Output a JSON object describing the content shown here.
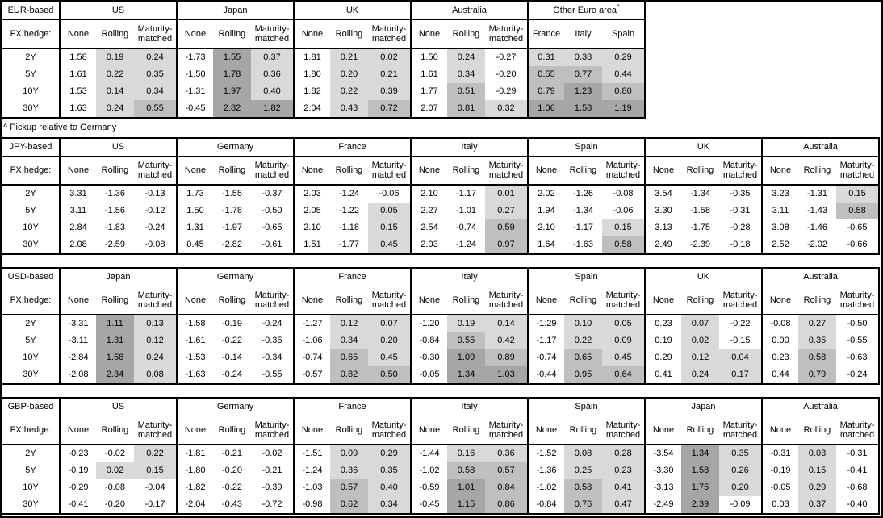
{
  "page": {
    "footnote": "^ Pickup relative to Germany"
  },
  "shared": {
    "row_header_label": "FX hedge:",
    "maturities": [
      "2Y",
      "5Y",
      "10Y",
      "30Y"
    ],
    "subcolumns": [
      "None",
      "Rolling",
      "Maturity-matched"
    ]
  },
  "colors": {
    "shade_negative": "#ffffff",
    "shade_0_to_0p5": "#d9d9d9",
    "shade_0p5_to_1": "#bfbfbf",
    "shade_1_plus": "#a6a6a6"
  },
  "tables": [
    {
      "base_label": "EUR-based",
      "full_width": false,
      "groups": [
        {
          "name": "US",
          "columns": [
            "None",
            "Rolling",
            "Maturity-matched"
          ],
          "shade_first_col": false,
          "rows": [
            [
              "1.58",
              "0.19",
              "0.24"
            ],
            [
              "1.61",
              "0.22",
              "0.35"
            ],
            [
              "1.53",
              "0.14",
              "0.34"
            ],
            [
              "1.63",
              "0.24",
              "0.55"
            ]
          ]
        },
        {
          "name": "Japan",
          "columns": [
            "None",
            "Rolling",
            "Maturity-matched"
          ],
          "shade_first_col": false,
          "rows": [
            [
              "-1.73",
              "1.55",
              "0.37"
            ],
            [
              "-1.50",
              "1.78",
              "0.36"
            ],
            [
              "-1.31",
              "1.97",
              "0.40"
            ],
            [
              "-0.45",
              "2.82",
              "1.82"
            ]
          ]
        },
        {
          "name": "UK",
          "columns": [
            "None",
            "Rolling",
            "Maturity-matched"
          ],
          "shade_first_col": false,
          "rows": [
            [
              "1.81",
              "0.21",
              "0.02"
            ],
            [
              "1.80",
              "0.20",
              "0.21"
            ],
            [
              "1.82",
              "0.22",
              "0.39"
            ],
            [
              "2.04",
              "0.43",
              "0.72"
            ]
          ]
        },
        {
          "name": "Australia",
          "columns": [
            "None",
            "Rolling",
            "Maturity-matched"
          ],
          "shade_first_col": false,
          "rows": [
            [
              "1.50",
              "0.24",
              "-0.27"
            ],
            [
              "1.61",
              "0.34",
              "-0.20"
            ],
            [
              "1.77",
              "0.51",
              "-0.29"
            ],
            [
              "2.07",
              "0.81",
              "0.32"
            ]
          ]
        },
        {
          "name": "Other Euro area",
          "sup": "^",
          "columns": [
            "France",
            "Italy",
            "Spain"
          ],
          "shade_first_col": true,
          "rows": [
            [
              "0.31",
              "0.38",
              "0.29"
            ],
            [
              "0.55",
              "0.77",
              "0.44"
            ],
            [
              "0.79",
              "1.23",
              "0.80"
            ],
            [
              "1.06",
              "1.58",
              "1.19"
            ]
          ]
        }
      ]
    },
    {
      "base_label": "JPY-based",
      "full_width": true,
      "groups": [
        {
          "name": "US",
          "columns": [
            "None",
            "Rolling",
            "Maturity-matched"
          ],
          "shade_first_col": false,
          "rows": [
            [
              "3.31",
              "-1.36",
              "-0.13"
            ],
            [
              "3.11",
              "-1.56",
              "-0.12"
            ],
            [
              "2.84",
              "-1.83",
              "-0.24"
            ],
            [
              "2.08",
              "-2.59",
              "-0.08"
            ]
          ]
        },
        {
          "name": "Germany",
          "columns": [
            "None",
            "Rolling",
            "Maturity-matched"
          ],
          "shade_first_col": false,
          "rows": [
            [
              "1.73",
              "-1.55",
              "-0.37"
            ],
            [
              "1.50",
              "-1.78",
              "-0.50"
            ],
            [
              "1.31",
              "-1.97",
              "-0.65"
            ],
            [
              "0.45",
              "-2.82",
              "-0.61"
            ]
          ]
        },
        {
          "name": "France",
          "columns": [
            "None",
            "Rolling",
            "Maturity-matched"
          ],
          "shade_first_col": false,
          "rows": [
            [
              "2.03",
              "-1.24",
              "-0.06"
            ],
            [
              "2.05",
              "-1.22",
              "0.05"
            ],
            [
              "2.10",
              "-1.18",
              "0.15"
            ],
            [
              "1.51",
              "-1.77",
              "0.45"
            ]
          ]
        },
        {
          "name": "Italy",
          "columns": [
            "None",
            "Rolling",
            "Maturity-matched"
          ],
          "shade_first_col": false,
          "rows": [
            [
              "2.10",
              "-1.17",
              "0.01"
            ],
            [
              "2.27",
              "-1.01",
              "0.27"
            ],
            [
              "2.54",
              "-0.74",
              "0.59"
            ],
            [
              "2.03",
              "-1.24",
              "0.97"
            ]
          ]
        },
        {
          "name": "Spain",
          "columns": [
            "None",
            "Rolling",
            "Maturity-matched"
          ],
          "shade_first_col": false,
          "rows": [
            [
              "2.02",
              "-1.26",
              "-0.08"
            ],
            [
              "1.94",
              "-1.34",
              "-0.06"
            ],
            [
              "2.10",
              "-1.17",
              "0.15"
            ],
            [
              "1.64",
              "-1.63",
              "0.58"
            ]
          ]
        },
        {
          "name": "UK",
          "columns": [
            "None",
            "Rolling",
            "Maturity-matched"
          ],
          "shade_first_col": false,
          "rows": [
            [
              "3.54",
              "-1.34",
              "-0.35"
            ],
            [
              "3.30",
              "-1.58",
              "-0.31"
            ],
            [
              "3.13",
              "-1.75",
              "-0.28"
            ],
            [
              "2.49",
              "-2.39",
              "-0.18"
            ]
          ]
        },
        {
          "name": "Australia",
          "columns": [
            "None",
            "Rolling",
            "Maturity-matched"
          ],
          "shade_first_col": false,
          "rows": [
            [
              "3.23",
              "-1.31",
              "0.15"
            ],
            [
              "3.11",
              "-1.43",
              "0.58"
            ],
            [
              "3.08",
              "-1.46",
              "-0.65"
            ],
            [
              "2.52",
              "-2.02",
              "-0.66"
            ]
          ]
        }
      ]
    },
    {
      "base_label": "USD-based",
      "full_width": true,
      "groups": [
        {
          "name": "Japan",
          "columns": [
            "None",
            "Rolling",
            "Maturity-matched"
          ],
          "shade_first_col": false,
          "rows": [
            [
              "-3.31",
              "1.11",
              "0.13"
            ],
            [
              "-3.11",
              "1.31",
              "0.12"
            ],
            [
              "-2.84",
              "1.58",
              "0.24"
            ],
            [
              "-2.08",
              "2.34",
              "0.08"
            ]
          ]
        },
        {
          "name": "Germany",
          "columns": [
            "None",
            "Rolling",
            "Maturity-matched"
          ],
          "shade_first_col": false,
          "rows": [
            [
              "-1.58",
              "-0.19",
              "-0.24"
            ],
            [
              "-1.61",
              "-0.22",
              "-0.35"
            ],
            [
              "-1.53",
              "-0.14",
              "-0.34"
            ],
            [
              "-1.63",
              "-0.24",
              "-0.55"
            ]
          ]
        },
        {
          "name": "France",
          "columns": [
            "None",
            "Rolling",
            "Maturity-matched"
          ],
          "shade_first_col": false,
          "rows": [
            [
              "-1.27",
              "0.12",
              "0.07"
            ],
            [
              "-1.06",
              "0.34",
              "0.20"
            ],
            [
              "-0.74",
              "0.65",
              "0.45"
            ],
            [
              "-0.57",
              "0.82",
              "0.50"
            ]
          ]
        },
        {
          "name": "Italy",
          "columns": [
            "None",
            "Rolling",
            "Maturity-matched"
          ],
          "shade_first_col": false,
          "rows": [
            [
              "-1.20",
              "0.19",
              "0.14"
            ],
            [
              "-0.84",
              "0.55",
              "0.42"
            ],
            [
              "-0.30",
              "1.09",
              "0.89"
            ],
            [
              "-0.05",
              "1.34",
              "1.03"
            ]
          ]
        },
        {
          "name": "Spain",
          "columns": [
            "None",
            "Rolling",
            "Maturity-matched"
          ],
          "shade_first_col": false,
          "rows": [
            [
              "-1.29",
              "0.10",
              "0.05"
            ],
            [
              "-1.17",
              "0.22",
              "0.09"
            ],
            [
              "-0.74",
              "0.65",
              "0.45"
            ],
            [
              "-0.44",
              "0.95",
              "0.64"
            ]
          ]
        },
        {
          "name": "UK",
          "columns": [
            "None",
            "Rolling",
            "Maturity-matched"
          ],
          "shade_first_col": false,
          "rows": [
            [
              "0.23",
              "0.07",
              "-0.22"
            ],
            [
              "0.19",
              "0.02",
              "-0.15"
            ],
            [
              "0.29",
              "0.12",
              "0.04"
            ],
            [
              "0.41",
              "0.24",
              "0.17"
            ]
          ]
        },
        {
          "name": "Australia",
          "columns": [
            "None",
            "Rolling",
            "Maturity-matched"
          ],
          "shade_first_col": false,
          "rows": [
            [
              "-0.08",
              "0.27",
              "-0.50"
            ],
            [
              "0.00",
              "0.35",
              "-0.55"
            ],
            [
              "0.23",
              "0.58",
              "-0.63"
            ],
            [
              "0.44",
              "0.79",
              "-0.24"
            ]
          ]
        }
      ]
    },
    {
      "base_label": "GBP-based",
      "full_width": true,
      "groups": [
        {
          "name": "US",
          "columns": [
            "None",
            "Rolling",
            "Maturity-matched"
          ],
          "shade_first_col": false,
          "rows": [
            [
              "-0.23",
              "-0.02",
              "0.22"
            ],
            [
              "-0.19",
              "0.02",
              "0.15"
            ],
            [
              "-0.29",
              "-0.08",
              "-0.04"
            ],
            [
              "-0.41",
              "-0.20",
              "-0.17"
            ]
          ]
        },
        {
          "name": "Germany",
          "columns": [
            "None",
            "Rolling",
            "Maturity-matched"
          ],
          "shade_first_col": false,
          "rows": [
            [
              "-1.81",
              "-0.21",
              "-0.02"
            ],
            [
              "-1.80",
              "-0.20",
              "-0.21"
            ],
            [
              "-1.82",
              "-0.22",
              "-0.39"
            ],
            [
              "-2.04",
              "-0.43",
              "-0.72"
            ]
          ]
        },
        {
          "name": "France",
          "columns": [
            "None",
            "Rolling",
            "Maturity-matched"
          ],
          "shade_first_col": false,
          "rows": [
            [
              "-1.51",
              "0.09",
              "0.29"
            ],
            [
              "-1.24",
              "0.36",
              "0.35"
            ],
            [
              "-1.03",
              "0.57",
              "0.40"
            ],
            [
              "-0.98",
              "0.62",
              "0.34"
            ]
          ]
        },
        {
          "name": "Italy",
          "columns": [
            "None",
            "Rolling",
            "Maturity-matched"
          ],
          "shade_first_col": false,
          "rows": [
            [
              "-1.44",
              "0.16",
              "0.36"
            ],
            [
              "-1.02",
              "0.58",
              "0.57"
            ],
            [
              "-0.59",
              "1.01",
              "0.84"
            ],
            [
              "-0.45",
              "1.15",
              "0.86"
            ]
          ]
        },
        {
          "name": "Spain",
          "columns": [
            "None",
            "Rolling",
            "Maturity-matched"
          ],
          "shade_first_col": false,
          "rows": [
            [
              "-1.52",
              "0.08",
              "0.28"
            ],
            [
              "-1.36",
              "0.25",
              "0.23"
            ],
            [
              "-1.02",
              "0.58",
              "0.41"
            ],
            [
              "-0.84",
              "0.76",
              "0.47"
            ]
          ]
        },
        {
          "name": "Japan",
          "columns": [
            "None",
            "Rolling",
            "Maturity-matched"
          ],
          "shade_first_col": false,
          "rows": [
            [
              "-3.54",
              "1.34",
              "0.35"
            ],
            [
              "-3.30",
              "1.58",
              "0.26"
            ],
            [
              "-3.13",
              "1.75",
              "0.20"
            ],
            [
              "-2.49",
              "2.39",
              "-0.09"
            ]
          ]
        },
        {
          "name": "Australia",
          "columns": [
            "None",
            "Rolling",
            "Maturity-matched"
          ],
          "shade_first_col": false,
          "rows": [
            [
              "-0.31",
              "0.03",
              "-0.31"
            ],
            [
              "-0.19",
              "0.15",
              "-0.41"
            ],
            [
              "-0.05",
              "0.29",
              "-0.68"
            ],
            [
              "0.03",
              "0.37",
              "-0.40"
            ]
          ]
        }
      ]
    }
  ]
}
